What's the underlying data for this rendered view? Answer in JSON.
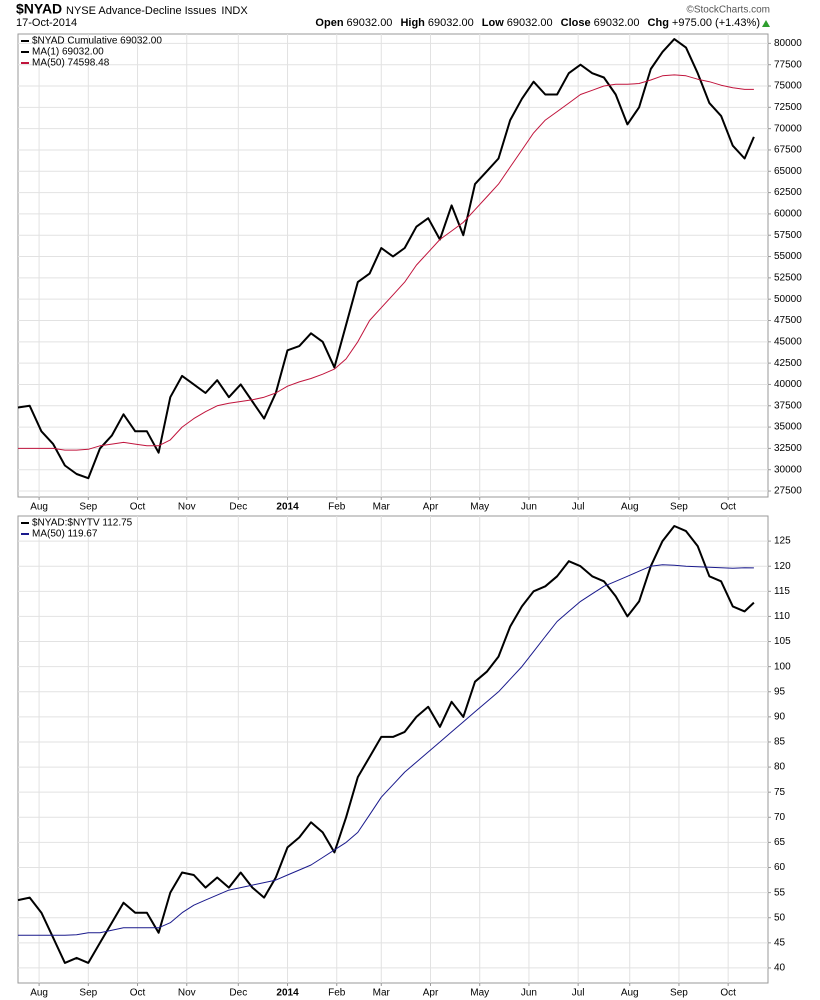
{
  "header": {
    "title": "$NYAD",
    "subtitle": "NYSE Advance-Decline Issues",
    "exchange": "INDX",
    "date": "17-Oct-2014",
    "copyright": "©StockCharts.com",
    "quote": [
      {
        "label": "Open",
        "value": "69032.00"
      },
      {
        "label": "High",
        "value": "69032.00"
      },
      {
        "label": "Low",
        "value": "69032.00"
      },
      {
        "label": "Close",
        "value": "69032.00"
      },
      {
        "label": "Chg",
        "value": "+975.00 (+1.43%)"
      }
    ]
  },
  "chart_data": [
    {
      "type": "line",
      "x": [
        0,
        5,
        10,
        15,
        20,
        25,
        30,
        35,
        40,
        45,
        50,
        55,
        60,
        65,
        70,
        75,
        80,
        85,
        90,
        95,
        100,
        105,
        110,
        115,
        120,
        125,
        130,
        135,
        140,
        145,
        150,
        155,
        160,
        165,
        170,
        175,
        180,
        185,
        190,
        195,
        200,
        205,
        210,
        215,
        220,
        225,
        230,
        235,
        240,
        245,
        250,
        255,
        260,
        265,
        270,
        275,
        280,
        285,
        290,
        295,
        300,
        305,
        310,
        314
      ],
      "xlim": [
        0,
        320
      ],
      "xticks": [
        {
          "value": 9,
          "label": "Aug"
        },
        {
          "value": 30,
          "label": "Sep"
        },
        {
          "value": 51,
          "label": "Oct"
        },
        {
          "value": 72,
          "label": "Nov"
        },
        {
          "value": 94,
          "label": "Dec"
        },
        {
          "value": 115,
          "label": "2014"
        },
        {
          "value": 136,
          "label": "Feb"
        },
        {
          "value": 155,
          "label": "Mar"
        },
        {
          "value": 176,
          "label": "Apr"
        },
        {
          "value": 197,
          "label": "May"
        },
        {
          "value": 218,
          "label": "Jun"
        },
        {
          "value": 239,
          "label": "Jul"
        },
        {
          "value": 261,
          "label": "Aug"
        },
        {
          "value": 282,
          "label": "Sep"
        },
        {
          "value": 303,
          "label": "Oct"
        }
      ],
      "ylim": [
        26800,
        81100
      ],
      "yticks": [
        27500,
        30000,
        32500,
        35000,
        37500,
        40000,
        42500,
        45000,
        47500,
        50000,
        52500,
        55000,
        57500,
        60000,
        62500,
        65000,
        67500,
        70000,
        72500,
        75000,
        77500,
        80000
      ],
      "grid": true,
      "series": [
        {
          "name": "$NYAD Cumulative 69032.00",
          "color": "#000000",
          "width": 2,
          "values": [
            37300,
            37500,
            34500,
            33000,
            30500,
            29500,
            29000,
            32500,
            34000,
            36500,
            34500,
            34500,
            32000,
            38500,
            41000,
            40000,
            39000,
            40500,
            38500,
            40000,
            38000,
            36000,
            39000,
            44000,
            44500,
            46000,
            45000,
            42000,
            47000,
            52000,
            53000,
            56000,
            55000,
            56000,
            58500,
            59500,
            57000,
            61000,
            57500,
            63500,
            65000,
            66500,
            71000,
            73500,
            75500,
            74000,
            74000,
            76500,
            77500,
            76500,
            76000,
            74000,
            70500,
            72500,
            77000,
            79000,
            80500,
            79500,
            76500,
            73000,
            71500,
            68000,
            66500,
            69032
          ]
        },
        {
          "name": "MA(50) 74598.48",
          "color": "#c0143c",
          "width": 1,
          "values": [
            32500,
            32500,
            32500,
            32500,
            32300,
            32300,
            32400,
            32800,
            33000,
            33200,
            33000,
            32800,
            32800,
            33500,
            35000,
            36000,
            36800,
            37500,
            37800,
            38000,
            38200,
            38500,
            39000,
            39800,
            40300,
            40700,
            41200,
            41800,
            43000,
            45000,
            47500,
            49000,
            50500,
            52000,
            54000,
            55500,
            57000,
            58000,
            59000,
            60500,
            62000,
            63500,
            65500,
            67500,
            69500,
            71000,
            72000,
            73000,
            74000,
            74500,
            75000,
            75200,
            75200,
            75300,
            75700,
            76200,
            76300,
            76200,
            75800,
            75500,
            75100,
            74800,
            74600,
            74598.48
          ]
        }
      ],
      "legend_extra": [
        {
          "name": "MA(1) 69032.00",
          "color": "#000000"
        }
      ]
    },
    {
      "type": "line",
      "x": [
        0,
        5,
        10,
        15,
        20,
        25,
        30,
        35,
        40,
        45,
        50,
        55,
        60,
        65,
        70,
        75,
        80,
        85,
        90,
        95,
        100,
        105,
        110,
        115,
        120,
        125,
        130,
        135,
        140,
        145,
        150,
        155,
        160,
        165,
        170,
        175,
        180,
        185,
        190,
        195,
        200,
        205,
        210,
        215,
        220,
        225,
        230,
        235,
        240,
        245,
        250,
        255,
        260,
        265,
        270,
        275,
        280,
        285,
        290,
        295,
        300,
        305,
        310,
        314
      ],
      "xlim": [
        0,
        320
      ],
      "xticks": [
        {
          "value": 9,
          "label": "Aug"
        },
        {
          "value": 30,
          "label": "Sep"
        },
        {
          "value": 51,
          "label": "Oct"
        },
        {
          "value": 72,
          "label": "Nov"
        },
        {
          "value": 94,
          "label": "Dec"
        },
        {
          "value": 115,
          "label": "2014"
        },
        {
          "value": 136,
          "label": "Feb"
        },
        {
          "value": 155,
          "label": "Mar"
        },
        {
          "value": 176,
          "label": "Apr"
        },
        {
          "value": 197,
          "label": "May"
        },
        {
          "value": 218,
          "label": "Jun"
        },
        {
          "value": 239,
          "label": "Jul"
        },
        {
          "value": 261,
          "label": "Aug"
        },
        {
          "value": 282,
          "label": "Sep"
        },
        {
          "value": 303,
          "label": "Oct"
        }
      ],
      "ylim": [
        37,
        130
      ],
      "yticks": [
        40,
        45,
        50,
        55,
        60,
        65,
        70,
        75,
        80,
        85,
        90,
        95,
        100,
        105,
        110,
        115,
        120,
        125
      ],
      "grid": true,
      "series": [
        {
          "name": "$NYAD:$NYTV 112.75",
          "color": "#000000",
          "width": 2,
          "values": [
            53.5,
            54,
            51,
            46,
            41,
            42,
            41,
            45,
            49,
            53,
            51,
            51,
            47,
            55,
            59,
            58.5,
            56,
            58,
            56,
            59,
            56,
            54,
            58,
            64,
            66,
            69,
            67,
            63,
            70,
            78,
            82,
            86,
            86,
            87,
            90,
            92,
            88,
            93,
            90,
            97,
            99,
            102,
            108,
            112,
            115,
            116,
            118,
            121,
            120,
            118,
            117,
            114,
            110,
            113,
            120,
            125,
            128,
            127,
            124,
            118,
            117,
            112,
            111,
            112.75
          ]
        },
        {
          "name": "MA(50) 119.67",
          "color": "#1a1a8c",
          "width": 1,
          "values": [
            46.5,
            46.5,
            46.5,
            46.5,
            46.5,
            46.6,
            47,
            47,
            47.5,
            48,
            48,
            48,
            48,
            49,
            51,
            52.5,
            53.5,
            54.5,
            55.5,
            56,
            56.5,
            57,
            57.5,
            58.5,
            59.5,
            60.5,
            62,
            63.5,
            65,
            67,
            70.5,
            74,
            76.5,
            79,
            81,
            83,
            85,
            87,
            89,
            91,
            93,
            95,
            97.5,
            100,
            103,
            106,
            109,
            111,
            113,
            114.5,
            116,
            117,
            118,
            119,
            120,
            120.3,
            120.2,
            120,
            119.9,
            119.8,
            119.7,
            119.6,
            119.7,
            119.67
          ]
        }
      ]
    }
  ]
}
